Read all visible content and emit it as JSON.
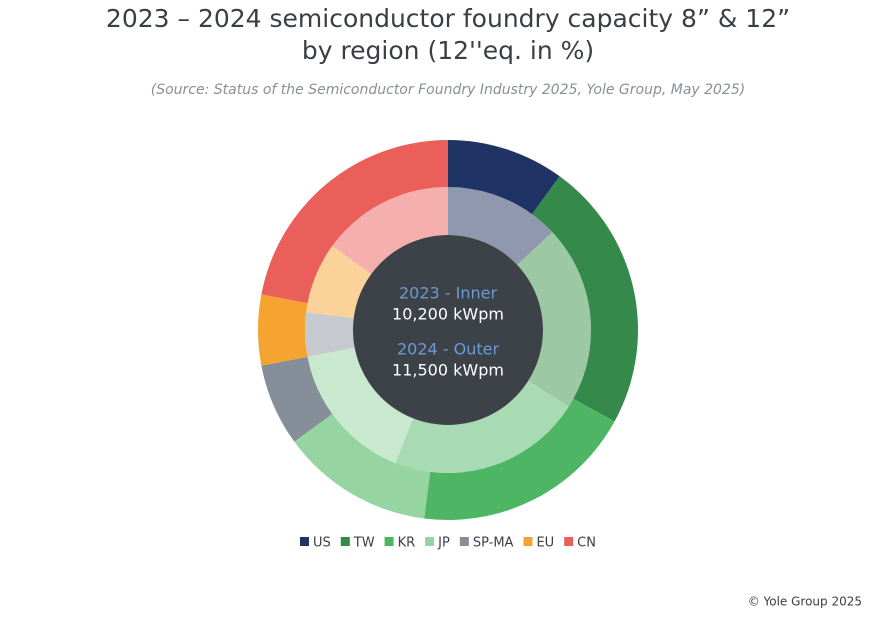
{
  "chart_data": {
    "type": "donut",
    "title": [
      "2023 – 2024 semiconductor foundry capacity 8” & 12”",
      "by region (12''eq. in %)"
    ],
    "subtitle": "(Source: Status of the Semiconductor Foundry Industry 2025, Yole Group, May 2025)",
    "categories": [
      "US",
      "TW",
      "KR",
      "JP",
      "SP-MA",
      "EU",
      "CN"
    ],
    "series": [
      {
        "name": "2023 - Inner",
        "total": "10,200 kWpm",
        "values": [
          13,
          21,
          22,
          16,
          5,
          8,
          15
        ],
        "colors": [
          "#9098b0",
          "#9cc8a4",
          "#a8dab3",
          "#c9e9cf",
          "#c6c9cd",
          "#fbd299",
          "#f5b0ad"
        ]
      },
      {
        "name": "2024 - Outer",
        "total": "11,500 kWpm",
        "values": [
          10,
          23,
          19,
          13,
          7,
          6,
          22
        ],
        "colors": [
          "#1f3464",
          "#358a4b",
          "#4db564",
          "#96d4a1",
          "#868f99",
          "#f6a431",
          "#ea5f59"
        ]
      }
    ],
    "credit": "© Yole Group 2025"
  }
}
